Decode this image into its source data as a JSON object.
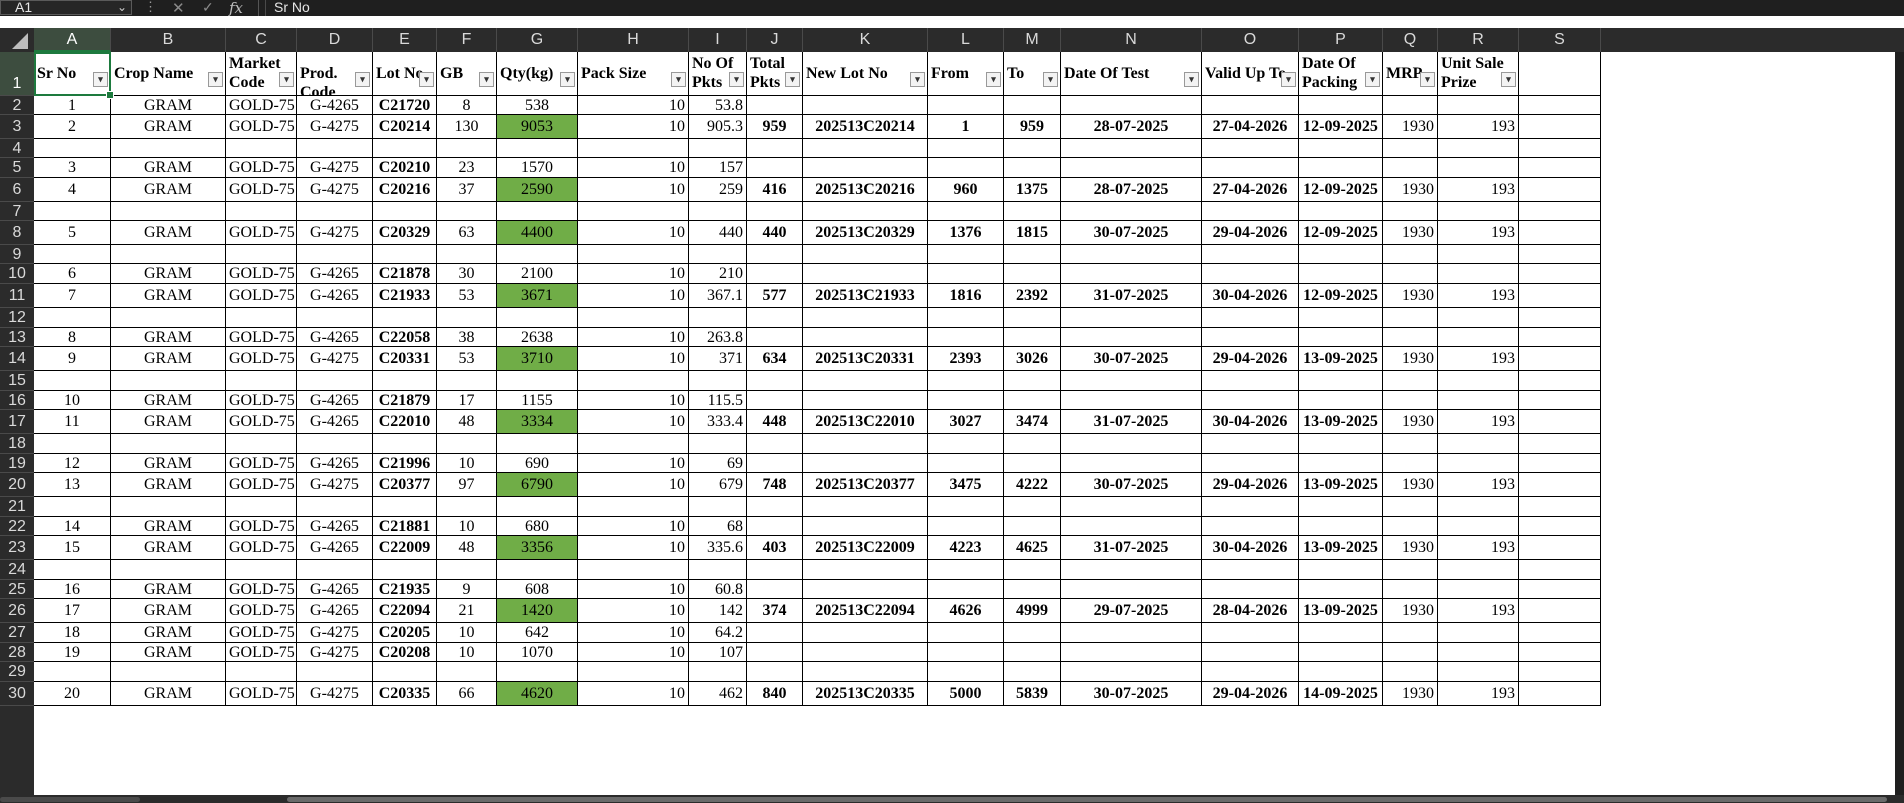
{
  "formula_bar": {
    "name_box": "A1",
    "formula": "Sr No",
    "fx": "fx"
  },
  "columns": [
    "A",
    "B",
    "C",
    "D",
    "E",
    "F",
    "G",
    "H",
    "I",
    "J",
    "K",
    "L",
    "M",
    "N",
    "O",
    "P",
    "Q",
    "R",
    "S"
  ],
  "rows": [
    "1",
    "2",
    "3",
    "4",
    "5",
    "6",
    "7",
    "8",
    "9",
    "10",
    "11",
    "12",
    "13",
    "14",
    "15",
    "16",
    "17",
    "18",
    "19",
    "20",
    "21",
    "22",
    "23",
    "24",
    "25",
    "26",
    "27",
    "28",
    "29",
    "30"
  ],
  "headers": [
    "Sr No",
    "Crop Name",
    "Market Code",
    "Prod. Code",
    "Lot No",
    "GB",
    "Qty(kg)",
    "Pack Size",
    "No Of Pkts",
    "Total Pkts",
    "New Lot No",
    "From",
    "To",
    "Date Of Test",
    "Valid Up To",
    "Date Of Packing",
    "MRP",
    "Unit Sale Prize"
  ],
  "table_rows": [
    [
      "1",
      "GRAM",
      "GOLD-75",
      "G-4265",
      "C21720",
      "8",
      "538",
      "10",
      "53.8",
      "",
      "",
      "",
      "",
      "",
      "",
      "",
      "",
      ""
    ],
    [
      "2",
      "GRAM",
      "GOLD-75",
      "G-4275",
      "C20214",
      "130",
      "9053",
      "10",
      "905.3",
      "959",
      "202513C20214",
      "1",
      "959",
      "28-07-2025",
      "27-04-2026",
      "12-09-2025",
      "1930",
      "193"
    ],
    [
      "",
      "",
      "",
      "",
      "",
      "",
      "",
      "",
      "",
      "",
      "",
      "",
      "",
      "",
      "",
      "",
      "",
      ""
    ],
    [
      "3",
      "GRAM",
      "GOLD-75",
      "G-4275",
      "C20210",
      "23",
      "1570",
      "10",
      "157",
      "",
      "",
      "",
      "",
      "",
      "",
      "",
      "",
      ""
    ],
    [
      "4",
      "GRAM",
      "GOLD-75",
      "G-4275",
      "C20216",
      "37",
      "2590",
      "10",
      "259",
      "416",
      "202513C20216",
      "960",
      "1375",
      "28-07-2025",
      "27-04-2026",
      "12-09-2025",
      "1930",
      "193"
    ],
    [
      "",
      "",
      "",
      "",
      "",
      "",
      "",
      "",
      "",
      "",
      "",
      "",
      "",
      "",
      "",
      "",
      "",
      ""
    ],
    [
      "5",
      "GRAM",
      "GOLD-75",
      "G-4275",
      "C20329",
      "63",
      "4400",
      "10",
      "440",
      "440",
      "202513C20329",
      "1376",
      "1815",
      "30-07-2025",
      "29-04-2026",
      "12-09-2025",
      "1930",
      "193"
    ],
    [
      "",
      "",
      "",
      "",
      "",
      "",
      "",
      "",
      "",
      "",
      "",
      "",
      "",
      "",
      "",
      "",
      "",
      ""
    ],
    [
      "6",
      "GRAM",
      "GOLD-75",
      "G-4265",
      "C21878",
      "30",
      "2100",
      "10",
      "210",
      "",
      "",
      "",
      "",
      "",
      "",
      "",
      "",
      ""
    ],
    [
      "7",
      "GRAM",
      "GOLD-75",
      "G-4265",
      "C21933",
      "53",
      "3671",
      "10",
      "367.1",
      "577",
      "202513C21933",
      "1816",
      "2392",
      "31-07-2025",
      "30-04-2026",
      "12-09-2025",
      "1930",
      "193"
    ],
    [
      "",
      "",
      "",
      "",
      "",
      "",
      "",
      "",
      "",
      "",
      "",
      "",
      "",
      "",
      "",
      "",
      "",
      ""
    ],
    [
      "8",
      "GRAM",
      "GOLD-75",
      "G-4265",
      "C22058",
      "38",
      "2638",
      "10",
      "263.8",
      "",
      "",
      "",
      "",
      "",
      "",
      "",
      "",
      ""
    ],
    [
      "9",
      "GRAM",
      "GOLD-75",
      "G-4275",
      "C20331",
      "53",
      "3710",
      "10",
      "371",
      "634",
      "202513C20331",
      "2393",
      "3026",
      "30-07-2025",
      "29-04-2026",
      "13-09-2025",
      "1930",
      "193"
    ],
    [
      "",
      "",
      "",
      "",
      "",
      "",
      "",
      "",
      "",
      "",
      "",
      "",
      "",
      "",
      "",
      "",
      "",
      ""
    ],
    [
      "10",
      "GRAM",
      "GOLD-75",
      "G-4265",
      "C21879",
      "17",
      "1155",
      "10",
      "115.5",
      "",
      "",
      "",
      "",
      "",
      "",
      "",
      "",
      ""
    ],
    [
      "11",
      "GRAM",
      "GOLD-75",
      "G-4265",
      "C22010",
      "48",
      "3334",
      "10",
      "333.4",
      "448",
      "202513C22010",
      "3027",
      "3474",
      "31-07-2025",
      "30-04-2026",
      "13-09-2025",
      "1930",
      "193"
    ],
    [
      "",
      "",
      "",
      "",
      "",
      "",
      "",
      "",
      "",
      "",
      "",
      "",
      "",
      "",
      "",
      "",
      "",
      ""
    ],
    [
      "12",
      "GRAM",
      "GOLD-75",
      "G-4265",
      "C21996",
      "10",
      "690",
      "10",
      "69",
      "",
      "",
      "",
      "",
      "",
      "",
      "",
      "",
      ""
    ],
    [
      "13",
      "GRAM",
      "GOLD-75",
      "G-4275",
      "C20377",
      "97",
      "6790",
      "10",
      "679",
      "748",
      "202513C20377",
      "3475",
      "4222",
      "30-07-2025",
      "29-04-2026",
      "13-09-2025",
      "1930",
      "193"
    ],
    [
      "",
      "",
      "",
      "",
      "",
      "",
      "",
      "",
      "",
      "",
      "",
      "",
      "",
      "",
      "",
      "",
      "",
      ""
    ],
    [
      "14",
      "GRAM",
      "GOLD-75",
      "G-4265",
      "C21881",
      "10",
      "680",
      "10",
      "68",
      "",
      "",
      "",
      "",
      "",
      "",
      "",
      "",
      ""
    ],
    [
      "15",
      "GRAM",
      "GOLD-75",
      "G-4265",
      "C22009",
      "48",
      "3356",
      "10",
      "335.6",
      "403",
      "202513C22009",
      "4223",
      "4625",
      "31-07-2025",
      "30-04-2026",
      "13-09-2025",
      "1930",
      "193"
    ],
    [
      "",
      "",
      "",
      "",
      "",
      "",
      "",
      "",
      "",
      "",
      "",
      "",
      "",
      "",
      "",
      "",
      "",
      ""
    ],
    [
      "16",
      "GRAM",
      "GOLD-75",
      "G-4265",
      "C21935",
      "9",
      "608",
      "10",
      "60.8",
      "",
      "",
      "",
      "",
      "",
      "",
      "",
      "",
      ""
    ],
    [
      "17",
      "GRAM",
      "GOLD-75",
      "G-4265",
      "C22094",
      "21",
      "1420",
      "10",
      "142",
      "374",
      "202513C22094",
      "4626",
      "4999",
      "29-07-2025",
      "28-04-2026",
      "13-09-2025",
      "1930",
      "193"
    ],
    [
      "18",
      "GRAM",
      "GOLD-75",
      "G-4275",
      "C20205",
      "10",
      "642",
      "10",
      "64.2",
      "",
      "",
      "",
      "",
      "",
      "",
      "",
      "",
      ""
    ],
    [
      "19",
      "GRAM",
      "GOLD-75",
      "G-4275",
      "C20208",
      "10",
      "1070",
      "10",
      "107",
      "",
      "",
      "",
      "",
      "",
      "",
      "",
      "",
      ""
    ],
    [
      "",
      "",
      "",
      "",
      "",
      "",
      "",
      "",
      "",
      "",
      "",
      "",
      "",
      "",
      "",
      "",
      "",
      ""
    ],
    [
      "20",
      "GRAM",
      "GOLD-75",
      "G-4275",
      "C20335",
      "66",
      "4620",
      "10",
      "462",
      "840",
      "202513C20335",
      "5000",
      "5839",
      "30-07-2025",
      "29-04-2026",
      "14-09-2025",
      "1930",
      "193"
    ]
  ],
  "green_fill_color": "#70ad47",
  "highlighted_qty_rows": [
    "3",
    "6",
    "8",
    "11",
    "14",
    "17",
    "20",
    "23",
    "26",
    "30"
  ]
}
